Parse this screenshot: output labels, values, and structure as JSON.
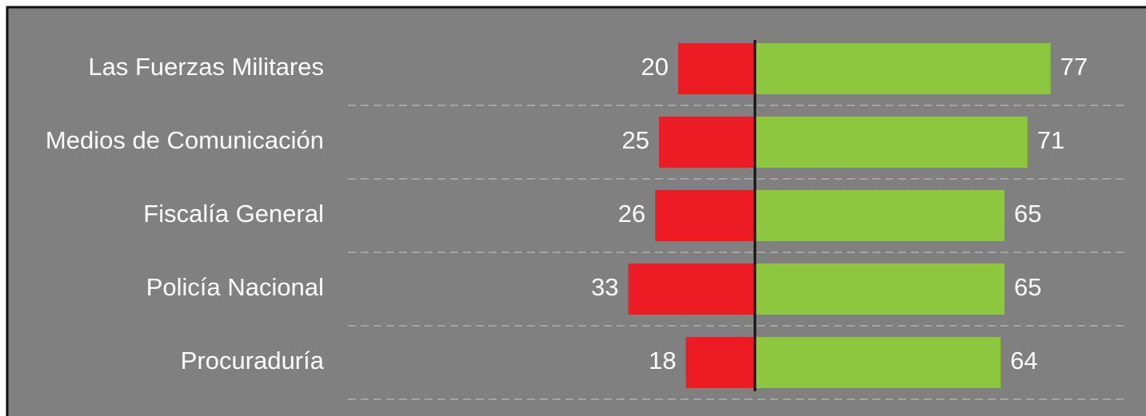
{
  "chart_data": {
    "type": "bar",
    "categories": [
      "Las Fuerzas Militares",
      "Medios de Comunicación",
      "Fiscalía General",
      "Policía Nacional",
      "Procuraduría"
    ],
    "series": [
      {
        "color": "#ed1c24",
        "values": [
          20,
          25,
          26,
          33,
          18
        ]
      },
      {
        "color": "#8dc63f",
        "values": [
          77,
          71,
          65,
          65,
          64
        ]
      }
    ]
  }
}
